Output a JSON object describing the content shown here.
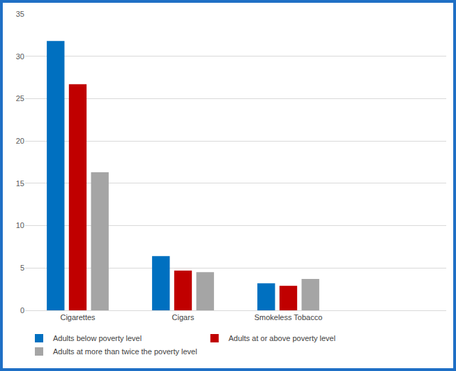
{
  "chart_data": {
    "type": "bar",
    "categories": [
      "Cigarettes",
      "Cigars",
      "Smokeless Tobacco",
      null
    ],
    "series": [
      {
        "name": "Adults below poverty level",
        "color": "#0070c0",
        "values": [
          31.8,
          6.4,
          3.2,
          null
        ]
      },
      {
        "name": "Adults at or above poverty level",
        "color": "#c00000",
        "values": [
          26.7,
          4.7,
          2.9,
          null
        ]
      },
      {
        "name": "Adults at more than twice the poverty level",
        "color": "#a5a5a5",
        "values": [
          16.3,
          4.5,
          3.7,
          null
        ]
      }
    ],
    "ylim": [
      0,
      35
    ],
    "yticks": [
      0,
      5,
      10,
      15,
      20,
      25,
      30,
      35
    ],
    "grid": true,
    "legend": "bottom"
  }
}
